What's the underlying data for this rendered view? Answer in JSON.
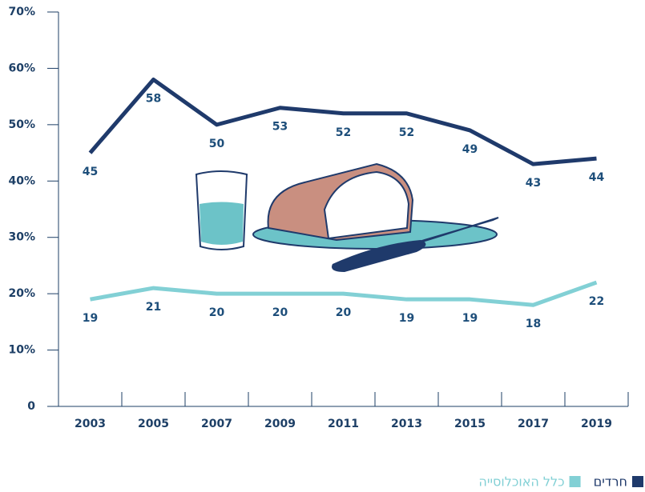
{
  "chart_data": {
    "type": "line",
    "categories": [
      "2003",
      "2005",
      "2007",
      "2009",
      "2011",
      "2013",
      "2015",
      "2017",
      "2019"
    ],
    "series": [
      {
        "name": "חרדים",
        "color": "#1f3a6b",
        "values": [
          45,
          58,
          50,
          53,
          52,
          52,
          49,
          43,
          44
        ]
      },
      {
        "name": "כלל האוכלוסייה",
        "color": "#82d0d5",
        "values": [
          19,
          21,
          20,
          20,
          20,
          19,
          19,
          18,
          22
        ]
      }
    ],
    "ylim": [
      0,
      70
    ],
    "yticks": [
      {
        "value": 0,
        "label": "0"
      },
      {
        "value": 10,
        "label": "10%"
      },
      {
        "value": 20,
        "label": "20%"
      },
      {
        "value": 30,
        "label": "30%"
      },
      {
        "value": 40,
        "label": "40%"
      },
      {
        "value": 50,
        "label": "50%"
      },
      {
        "value": 60,
        "label": "60%"
      },
      {
        "value": 70,
        "label": "70%"
      }
    ],
    "legend": "bottom-right"
  }
}
